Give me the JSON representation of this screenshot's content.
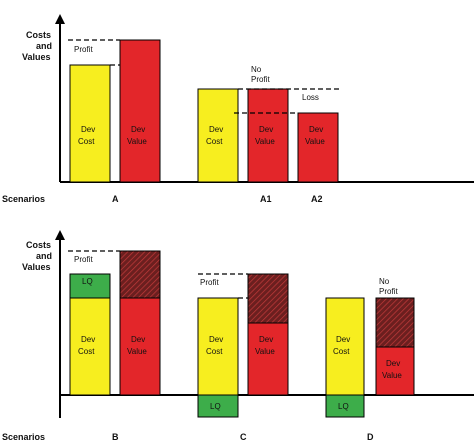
{
  "colors": {
    "cost": "#f7ee1f",
    "value": "#e3262a",
    "lq": "#3dad4a",
    "hatch": "#6b1f1f",
    "axis": "#000000"
  },
  "top": {
    "axis_label_line1": "Costs",
    "axis_label_line2": "and",
    "axis_label_line3": "Values",
    "scenarios_label": "Scenarios",
    "scenario_a": "A",
    "scenario_a1": "A1",
    "scenario_a2": "A2",
    "profit": "Profit",
    "no_profit_line1": "No",
    "no_profit_line2": "Profit",
    "loss": "Loss",
    "dev": "Dev",
    "cost": "Cost",
    "value": "Value"
  },
  "bottom": {
    "axis_label_line1": "Costs",
    "axis_label_line2": "and",
    "axis_label_line3": "Values",
    "scenarios_label": "Scenarios",
    "scenario_b": "B",
    "scenario_c": "C",
    "scenario_d": "D",
    "profit": "Profit",
    "no_profit_line1": "No",
    "no_profit_line2": "Profit",
    "lq": "LQ",
    "dev": "Dev",
    "cost": "Cost",
    "value": "Value"
  }
}
